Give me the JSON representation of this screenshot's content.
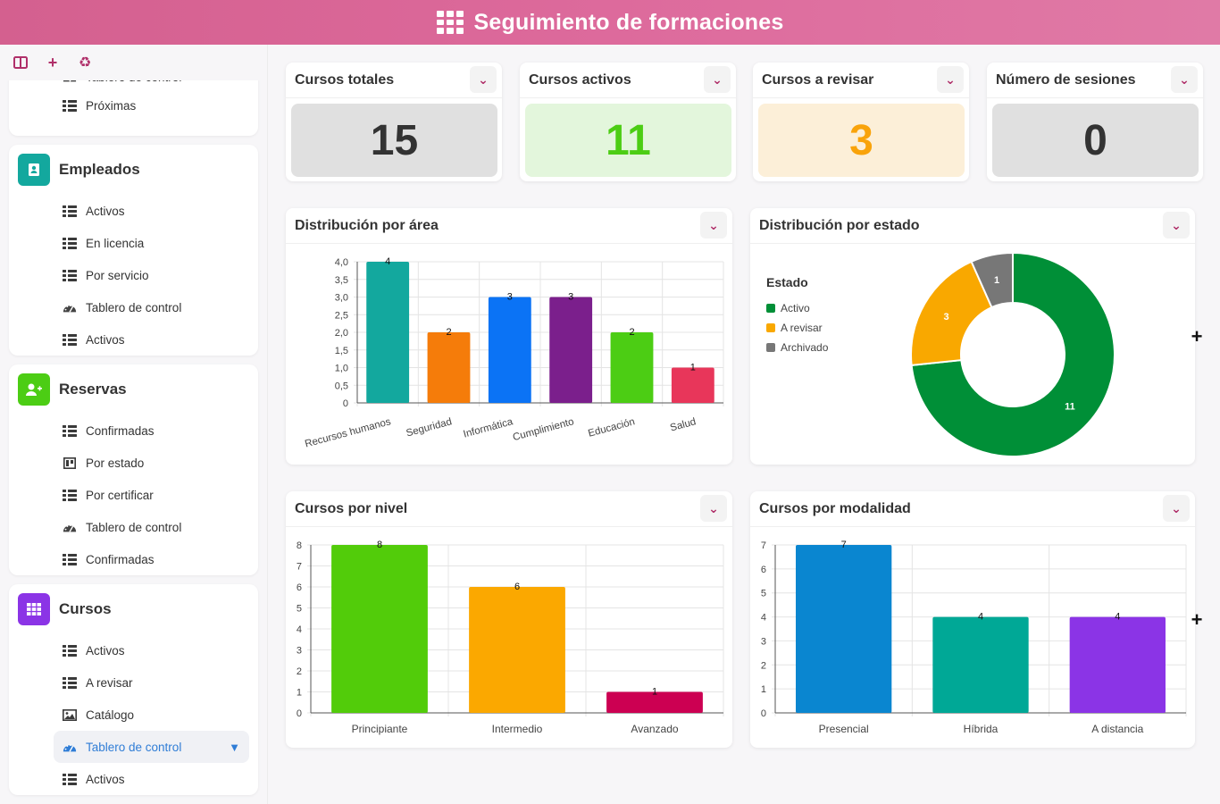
{
  "header": {
    "title": "Seguimiento de formaciones"
  },
  "sidebar": {
    "toolbar": [
      "columns-icon",
      "plus-icon",
      "recycle-icon"
    ],
    "top_card": {
      "partial_item": "Tablero de control",
      "items": [
        {
          "label": "Próximas",
          "icon": "list-icon"
        }
      ]
    },
    "sections": [
      {
        "label": "Empleados",
        "color": "#13a89e",
        "icon": "id-card-icon",
        "items": [
          {
            "label": "Activos",
            "icon": "list-icon"
          },
          {
            "label": "En licencia",
            "icon": "list-icon"
          },
          {
            "label": "Por servicio",
            "icon": "list-icon"
          },
          {
            "label": "Tablero de control",
            "icon": "dashboard-icon"
          },
          {
            "label": "Activos",
            "icon": "list-icon"
          }
        ]
      },
      {
        "label": "Reservas",
        "color": "#4ccd14",
        "icon": "add-user-icon",
        "items": [
          {
            "label": "Confirmadas",
            "icon": "list-icon"
          },
          {
            "label": "Por estado",
            "icon": "kanban-icon"
          },
          {
            "label": "Por certificar",
            "icon": "list-icon"
          },
          {
            "label": "Tablero de control",
            "icon": "dashboard-icon"
          },
          {
            "label": "Confirmadas",
            "icon": "list-icon"
          }
        ]
      },
      {
        "label": "Cursos",
        "color": "#8b34e6",
        "icon": "grid-icon",
        "items": [
          {
            "label": "Activos",
            "icon": "list-icon"
          },
          {
            "label": "A revisar",
            "icon": "list-icon"
          },
          {
            "label": "Catálogo",
            "icon": "image-icon"
          },
          {
            "label": "Tablero de control",
            "icon": "dashboard-icon",
            "active": true
          },
          {
            "label": "Activos",
            "icon": "list-icon"
          }
        ]
      }
    ]
  },
  "stats": [
    {
      "title": "Cursos totales",
      "value": "15",
      "bg": "#e0e0e0",
      "color": "#333333"
    },
    {
      "title": "Cursos activos",
      "value": "11",
      "bg": "#e3f6dc",
      "color": "#4ccd14"
    },
    {
      "title": "Cursos a revisar",
      "value": "3",
      "bg": "#fcefd8",
      "color": "#f9a30a"
    },
    {
      "title": "Número de sesiones",
      "value": "0",
      "bg": "#e0e0e0",
      "color": "#333333"
    }
  ],
  "panels": {
    "area": {
      "title": "Distribución por área"
    },
    "estado": {
      "title": "Distribución por estado"
    },
    "nivel": {
      "title": "Cursos por nivel"
    },
    "modalidad": {
      "title": "Cursos por modalidad"
    }
  },
  "chart_data": [
    {
      "type": "bar",
      "id": "area",
      "categories": [
        "Recursos humanos",
        "Seguridad",
        "Informática",
        "Cumplimiento",
        "Educación",
        "Salud"
      ],
      "values": [
        4,
        2,
        3,
        3,
        2,
        1
      ],
      "colors": [
        "#13a89e",
        "#f57c0a",
        "#0b73f5",
        "#7b1f8c",
        "#4ccd14",
        "#e8365a"
      ],
      "yticks": [
        "0",
        "0,5",
        "1,0",
        "1,5",
        "2,0",
        "2,5",
        "3,0",
        "3,5",
        "4,0"
      ],
      "ylim": [
        0,
        4
      ],
      "grid": true
    },
    {
      "type": "pie",
      "id": "estado",
      "legend_title": "Estado",
      "labels": [
        "Activo",
        "A revisar",
        "Archivado"
      ],
      "values": [
        11,
        3,
        1
      ],
      "colors": [
        "#008f37",
        "#f9a800",
        "#777777"
      ],
      "legend": "left"
    },
    {
      "type": "bar",
      "id": "nivel",
      "categories": [
        "Principiante",
        "Intermedio",
        "Avanzado"
      ],
      "values": [
        8,
        6,
        1
      ],
      "colors": [
        "#52cc0a",
        "#fba800",
        "#cc0052"
      ],
      "yticks": [
        "0",
        "1",
        "2",
        "3",
        "4",
        "5",
        "6",
        "7",
        "8"
      ],
      "ylim": [
        0,
        8
      ],
      "grid": true
    },
    {
      "type": "bar",
      "id": "modalidad",
      "categories": [
        "Presencial",
        "Híbrida",
        "A distancia"
      ],
      "values": [
        7,
        4,
        4
      ],
      "colors": [
        "#0a86d0",
        "#00a896",
        "#8b34e6"
      ],
      "yticks": [
        "0",
        "1",
        "2",
        "3",
        "4",
        "5",
        "6",
        "7"
      ],
      "ylim": [
        0,
        7
      ],
      "grid": true
    }
  ]
}
